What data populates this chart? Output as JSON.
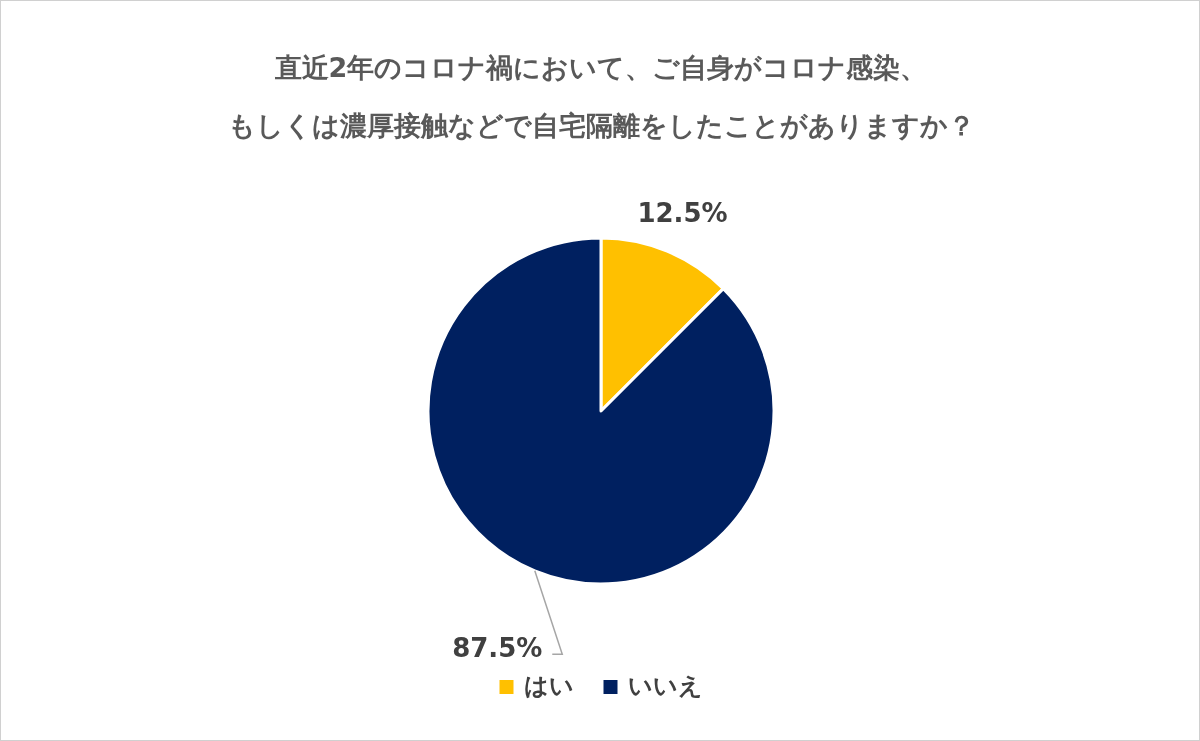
{
  "chart_data": {
    "type": "pie",
    "title": "直近2年のコロナ禍において、ご自身がコロナ感染、もしくは濃厚接触などで自宅隔離をしたことがありますか？",
    "categories": [
      "はい",
      "いいえ"
    ],
    "values": [
      12.5,
      87.5
    ],
    "value_labels": [
      "12.5%",
      "87.5%"
    ],
    "colors": [
      "#ffc000",
      "#002060"
    ],
    "legend": "bottom"
  }
}
